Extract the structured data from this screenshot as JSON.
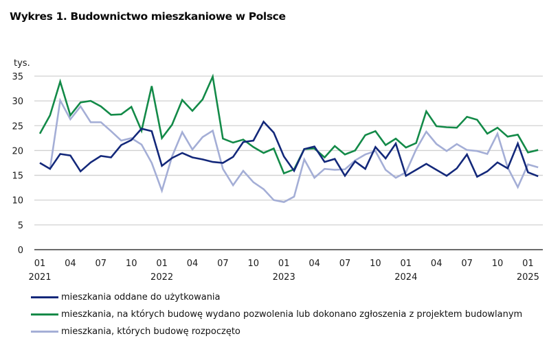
{
  "title": "Wykres 1. Budownictwo mieszkaniowe w Polsce",
  "chart_data": {
    "type": "line",
    "title": "Wykres 1. Budownictwo mieszkaniowe w Polsce",
    "xlabel": "",
    "ylabel": "tys.",
    "ylim": [
      0,
      35
    ],
    "yticks": [
      "0",
      "5",
      "10",
      "15",
      "20",
      "25",
      "30",
      "35"
    ],
    "ytick_values": [
      0,
      5,
      10,
      15,
      20,
      25,
      30,
      35
    ],
    "grid": true,
    "legend_position": "bottom",
    "x_start": "2021-01",
    "x_end": "2025-02",
    "x": [
      "2021-01",
      "2021-02",
      "2021-03",
      "2021-04",
      "2021-05",
      "2021-06",
      "2021-07",
      "2021-08",
      "2021-09",
      "2021-10",
      "2021-11",
      "2021-12",
      "2022-01",
      "2022-02",
      "2022-03",
      "2022-04",
      "2022-05",
      "2022-06",
      "2022-07",
      "2022-08",
      "2022-09",
      "2022-10",
      "2022-11",
      "2022-12",
      "2023-01",
      "2023-02",
      "2023-03",
      "2023-04",
      "2023-05",
      "2023-06",
      "2023-07",
      "2023-08",
      "2023-09",
      "2023-10",
      "2023-11",
      "2023-12",
      "2024-01",
      "2024-02",
      "2024-03",
      "2024-04",
      "2024-05",
      "2024-06",
      "2024-07",
      "2024-08",
      "2024-09",
      "2024-10",
      "2024-11",
      "2024-12",
      "2025-01",
      "2025-02"
    ],
    "xticks": [
      {
        "index": 0,
        "month": "01",
        "year": "2021"
      },
      {
        "index": 3,
        "month": "04",
        "year": ""
      },
      {
        "index": 6,
        "month": "07",
        "year": ""
      },
      {
        "index": 9,
        "month": "10",
        "year": ""
      },
      {
        "index": 12,
        "month": "01",
        "year": "2022"
      },
      {
        "index": 15,
        "month": "04",
        "year": ""
      },
      {
        "index": 18,
        "month": "07",
        "year": ""
      },
      {
        "index": 21,
        "month": "10",
        "year": ""
      },
      {
        "index": 24,
        "month": "01",
        "year": "2023"
      },
      {
        "index": 27,
        "month": "04",
        "year": ""
      },
      {
        "index": 30,
        "month": "07",
        "year": ""
      },
      {
        "index": 33,
        "month": "10",
        "year": ""
      },
      {
        "index": 36,
        "month": "01",
        "year": "2024"
      },
      {
        "index": 39,
        "month": "04",
        "year": ""
      },
      {
        "index": 42,
        "month": "07",
        "year": ""
      },
      {
        "index": 45,
        "month": "10",
        "year": ""
      },
      {
        "index": 48,
        "month": "01",
        "year": "2025"
      }
    ],
    "series": [
      {
        "name": "mieszkania oddane do użytkowania",
        "color": "#13287a",
        "values": [
          17.5,
          16.3,
          19.3,
          19.0,
          15.8,
          17.6,
          18.9,
          18.6,
          21.1,
          22.1,
          24.4,
          23.9,
          16.9,
          18.5,
          19.5,
          18.6,
          18.2,
          17.7,
          17.5,
          18.7,
          21.7,
          22.0,
          25.8,
          23.6,
          18.8,
          15.9,
          20.3,
          20.8,
          17.7,
          18.3,
          14.9,
          17.8,
          16.3,
          20.7,
          18.4,
          21.4,
          14.9,
          16.1,
          17.3,
          16.1,
          14.9,
          16.4,
          19.2,
          14.7,
          15.8,
          17.6,
          16.4,
          21.4,
          15.6,
          14.8
        ]
      },
      {
        "name": "mieszkania, na których budowę wydano pozwolenia lub dokonano zgłoszenia z projektem budowlanym",
        "color": "#138a48",
        "values": [
          23.4,
          27.1,
          33.9,
          27.1,
          29.7,
          30.0,
          28.9,
          27.2,
          27.3,
          28.8,
          24.0,
          33.0,
          22.5,
          25.2,
          30.2,
          28.0,
          30.3,
          34.9,
          22.4,
          21.6,
          22.2,
          20.7,
          19.5,
          20.4,
          15.4,
          16.2,
          20.3,
          20.4,
          18.6,
          20.9,
          19.2,
          20.0,
          23.1,
          23.9,
          21.1,
          22.4,
          20.6,
          21.5,
          27.9,
          24.9,
          24.7,
          24.6,
          26.8,
          26.2,
          23.4,
          24.6,
          22.8,
          23.2,
          19.6,
          20.1
        ]
      },
      {
        "name": "mieszkania, których budowę rozpoczęto",
        "color": "#a4aed6",
        "values": [
          17.5,
          16.3,
          30.1,
          26.3,
          28.9,
          25.7,
          25.7,
          23.9,
          22.0,
          22.5,
          21.2,
          17.5,
          11.9,
          18.8,
          23.7,
          20.2,
          22.7,
          24.0,
          16.3,
          13.0,
          15.9,
          13.6,
          12.2,
          10.0,
          9.6,
          10.7,
          18.2,
          14.5,
          16.3,
          16.1,
          16.2,
          18.0,
          19.2,
          19.9,
          16.1,
          14.5,
          15.6,
          20.2,
          23.8,
          21.3,
          19.9,
          21.3,
          20.1,
          19.9,
          19.3,
          23.4,
          16.6,
          12.6,
          17.2,
          16.6
        ]
      }
    ]
  },
  "legend": [
    {
      "label": "mieszkania oddane do użytkowania"
    },
    {
      "label": "mieszkania, na których budowę wydano pozwolenia lub dokonano zgłoszenia z projektem budowlanym"
    },
    {
      "label": "mieszkania, których budowę rozpoczęto"
    }
  ]
}
